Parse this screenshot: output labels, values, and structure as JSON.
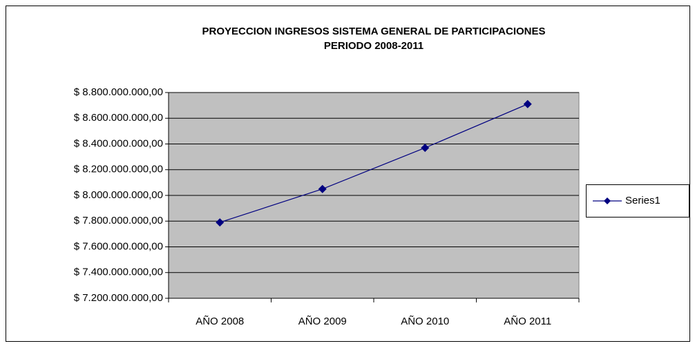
{
  "chart_data": {
    "type": "line",
    "title": [
      "PROYECCION INGRESOS SISTEMA GENERAL DE PARTICIPACIONES",
      "PERIODO 2008-2011"
    ],
    "categories": [
      "AÑO 2008",
      "AÑO 2009",
      "AÑO 2010",
      "AÑO 2011"
    ],
    "series": [
      {
        "name": "Series1",
        "color": "#000080",
        "values": [
          7790000000,
          8050000000,
          8370000000,
          8710000000
        ]
      }
    ],
    "ylim": [
      7200000000,
      8800000000
    ],
    "yticks": [
      {
        "value": 7200000000,
        "label": "$ 7.200.000.000,00"
      },
      {
        "value": 7400000000,
        "label": "$ 7.400.000.000,00"
      },
      {
        "value": 7600000000,
        "label": "$ 7.600.000.000,00"
      },
      {
        "value": 7800000000,
        "label": "$ 7.800.000.000,00"
      },
      {
        "value": 8000000000,
        "label": "$ 8.000.000.000,00"
      },
      {
        "value": 8200000000,
        "label": "$ 8.200.000.000,00"
      },
      {
        "value": 8400000000,
        "label": "$ 8.400.000.000,00"
      },
      {
        "value": 8600000000,
        "label": "$ 8.600.000.000,00"
      },
      {
        "value": 8800000000,
        "label": "$ 8.800.000.000,00"
      }
    ],
    "grid": true,
    "legend": "right",
    "plot_background": "#c0c0c0"
  }
}
